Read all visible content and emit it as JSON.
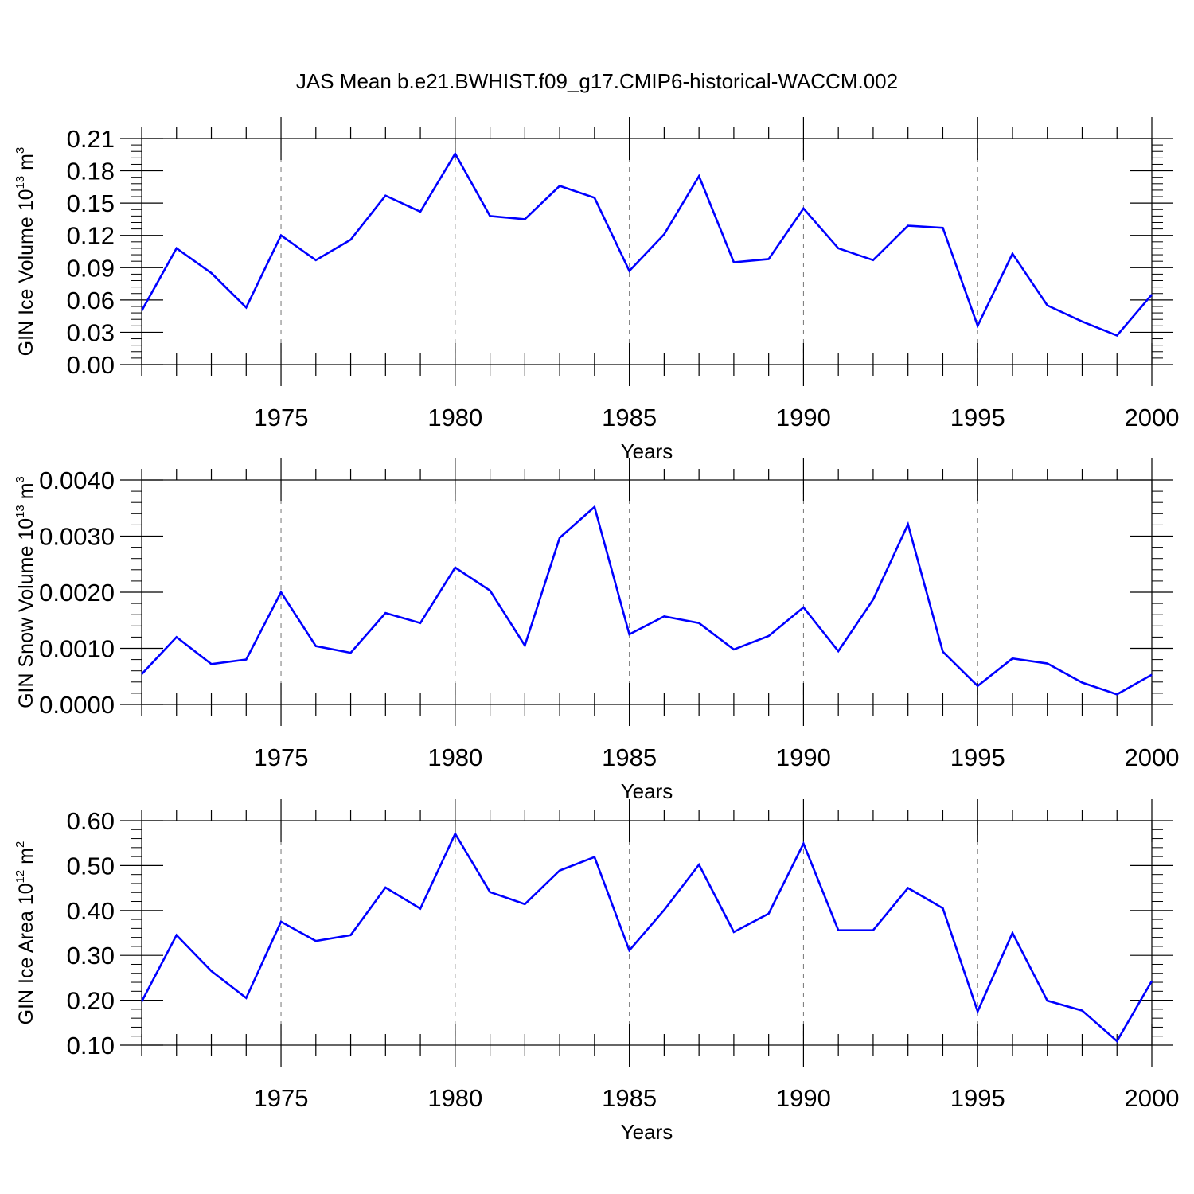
{
  "chart_data": [
    {
      "type": "line",
      "title": "JAS Mean b.e21.BWHIST.f09_g17.CMIP6-historical-WACCM.002",
      "xlabel": "Years",
      "ylabel": "GIN Ice Volume 10",
      "ylabel_exp": "13",
      "ylabel_unit": " m",
      "ylabel_unit_exp": "3",
      "xlim": [
        1971,
        2000
      ],
      "ylim": [
        0.0,
        0.21
      ],
      "xticks": [
        1975,
        1980,
        1985,
        1990,
        1995,
        2000
      ],
      "yticks": [
        0.0,
        0.03,
        0.06,
        0.09,
        0.12,
        0.15,
        0.18,
        0.21
      ],
      "ytick_labels": [
        "0.00",
        "0.03",
        "0.06",
        "0.09",
        "0.12",
        "0.15",
        "0.18",
        "0.21"
      ],
      "grid": "vertical-dashed",
      "series": [
        {
          "name": "GIN Ice Volume",
          "color": "#0000ff",
          "x": [
            1971,
            1972,
            1973,
            1974,
            1975,
            1976,
            1977,
            1978,
            1979,
            1980,
            1981,
            1982,
            1983,
            1984,
            1985,
            1986,
            1987,
            1988,
            1989,
            1990,
            1991,
            1992,
            1993,
            1994,
            1995,
            1996,
            1997,
            1998,
            1999,
            2000
          ],
          "values": [
            0.05,
            0.108,
            0.085,
            0.053,
            0.12,
            0.097,
            0.116,
            0.157,
            0.142,
            0.196,
            0.138,
            0.135,
            0.166,
            0.155,
            0.087,
            0.121,
            0.175,
            0.095,
            0.098,
            0.145,
            0.108,
            0.097,
            0.129,
            0.127,
            0.036,
            0.103,
            0.055,
            0.04,
            0.027,
            0.065
          ]
        }
      ]
    },
    {
      "type": "line",
      "title": "",
      "xlabel": "Years",
      "ylabel": "GIN Snow Volume 10",
      "ylabel_exp": "13",
      "ylabel_unit": " m",
      "ylabel_unit_exp": "3",
      "xlim": [
        1971,
        2000
      ],
      "ylim": [
        0.0,
        0.004
      ],
      "xticks": [
        1975,
        1980,
        1985,
        1990,
        1995,
        2000
      ],
      "yticks": [
        0.0,
        0.001,
        0.002,
        0.003,
        0.004
      ],
      "ytick_labels": [
        "0.0000",
        "0.0010",
        "0.0020",
        "0.0030",
        "0.0040"
      ],
      "grid": "vertical-dashed",
      "series": [
        {
          "name": "GIN Snow Volume",
          "color": "#0000ff",
          "x": [
            1971,
            1972,
            1973,
            1974,
            1975,
            1976,
            1977,
            1978,
            1979,
            1980,
            1981,
            1982,
            1983,
            1984,
            1985,
            1986,
            1987,
            1988,
            1989,
            1990,
            1991,
            1992,
            1993,
            1994,
            1995,
            1996,
            1997,
            1998,
            1999,
            2000
          ],
          "values": [
            0.00054,
            0.0012,
            0.00072,
            0.0008,
            0.002,
            0.00104,
            0.00092,
            0.00163,
            0.00145,
            0.00244,
            0.00203,
            0.00105,
            0.00297,
            0.00352,
            0.00125,
            0.00157,
            0.00145,
            0.00098,
            0.00122,
            0.00173,
            0.00095,
            0.00187,
            0.00321,
            0.00094,
            0.00033,
            0.00082,
            0.00073,
            0.00039,
            0.00018,
            0.00053
          ]
        }
      ]
    },
    {
      "type": "line",
      "title": "",
      "xlabel": "Years",
      "ylabel": "GIN Ice Area 10",
      "ylabel_exp": "12",
      "ylabel_unit": " m",
      "ylabel_unit_exp": "2",
      "xlim": [
        1971,
        2000
      ],
      "ylim": [
        0.1,
        0.6
      ],
      "xticks": [
        1975,
        1980,
        1985,
        1990,
        1995,
        2000
      ],
      "yticks": [
        0.1,
        0.2,
        0.3,
        0.4,
        0.5,
        0.6
      ],
      "ytick_labels": [
        "0.10",
        "0.20",
        "0.30",
        "0.40",
        "0.50",
        "0.60"
      ],
      "grid": "vertical-dashed",
      "series": [
        {
          "name": "GIN Ice Area",
          "color": "#0000ff",
          "x": [
            1971,
            1972,
            1973,
            1974,
            1975,
            1976,
            1977,
            1978,
            1979,
            1980,
            1981,
            1982,
            1983,
            1984,
            1985,
            1986,
            1987,
            1988,
            1989,
            1990,
            1991,
            1992,
            1993,
            1994,
            1995,
            1996,
            1997,
            1998,
            1999,
            2000
          ],
          "values": [
            0.197,
            0.345,
            0.265,
            0.205,
            0.375,
            0.332,
            0.345,
            0.451,
            0.404,
            0.571,
            0.441,
            0.414,
            0.489,
            0.519,
            0.311,
            0.401,
            0.502,
            0.352,
            0.393,
            0.549,
            0.356,
            0.356,
            0.45,
            0.405,
            0.175,
            0.35,
            0.199,
            0.177,
            0.109,
            0.243
          ]
        }
      ]
    }
  ]
}
